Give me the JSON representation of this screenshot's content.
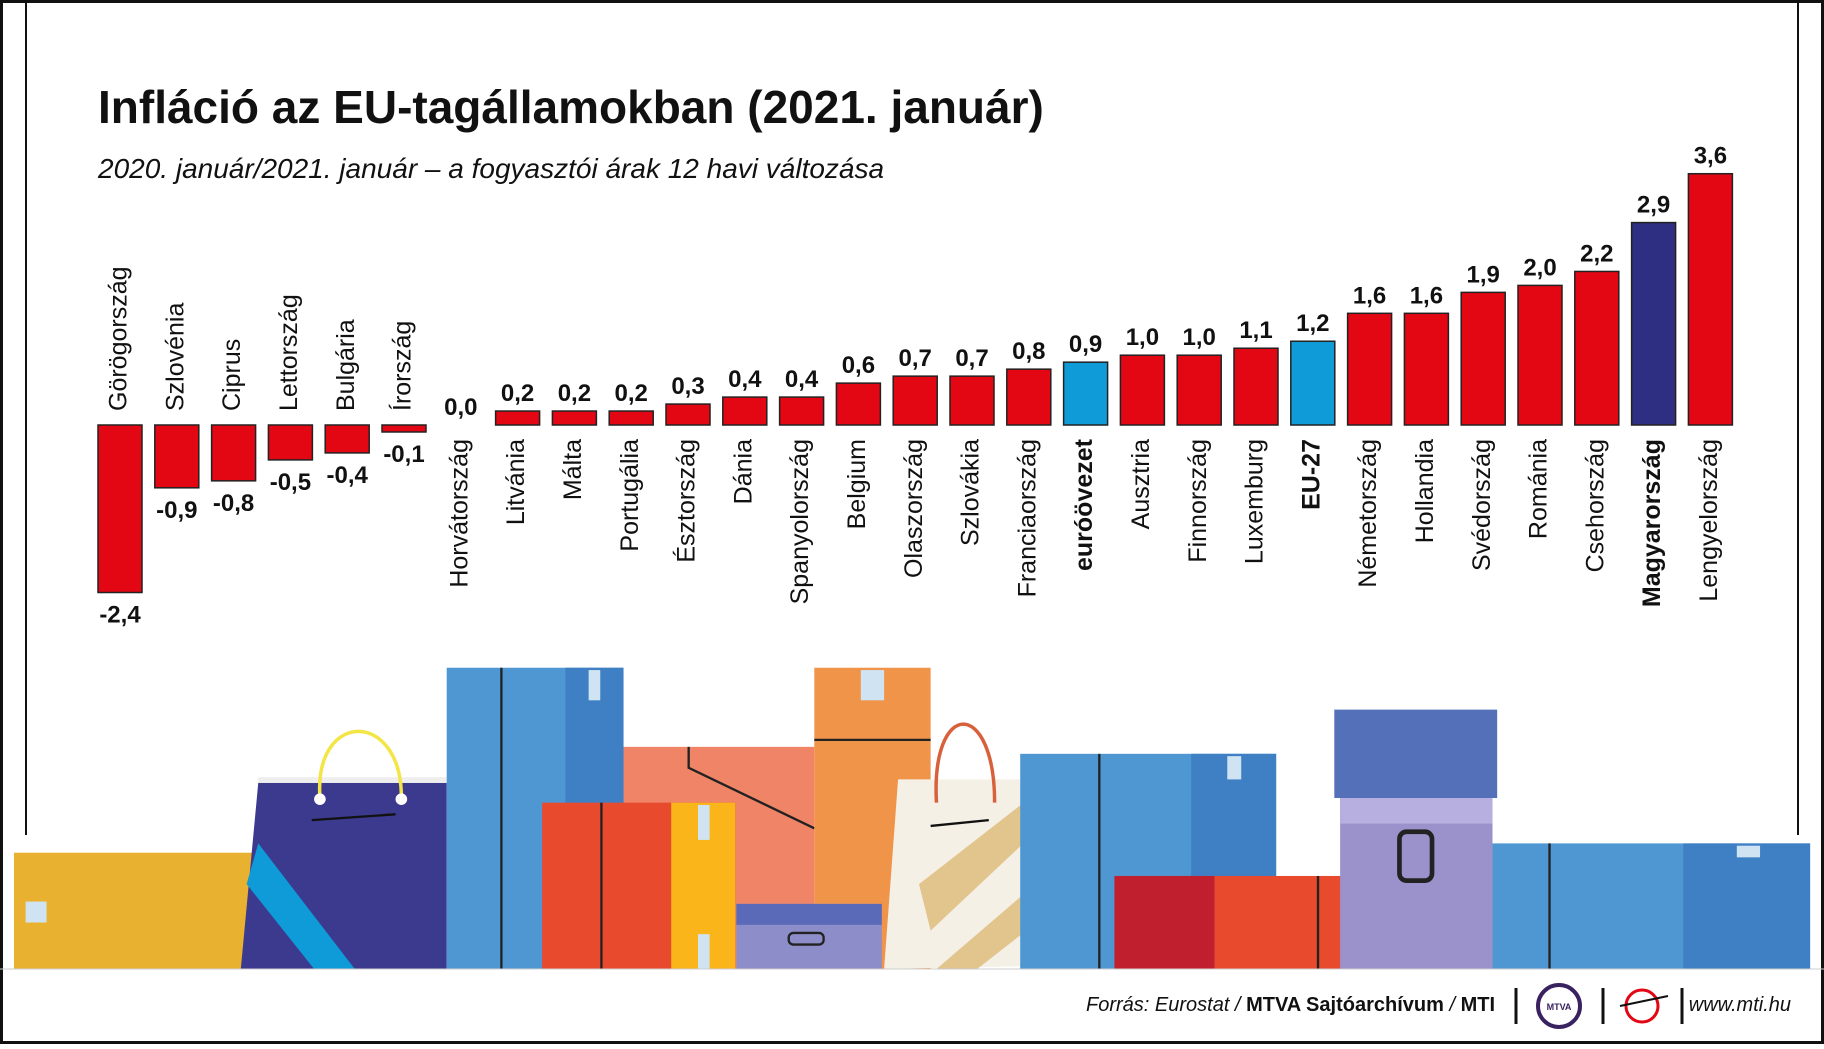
{
  "chart_data": {
    "type": "bar",
    "title": "Infláció az EU-tagállamokban (2021. január)",
    "subtitle": "2020. január/2021. január – a fogyasztói árak 12 havi változása",
    "categories": [
      "Görögország",
      "Szlovénia",
      "Ciprus",
      "Lettország",
      "Bulgária",
      "Írország",
      "Horvátország",
      "Litvánia",
      "Málta",
      "Portugália",
      "Észtország",
      "Dánia",
      "Spanyolország",
      "Belgium",
      "Olaszország",
      "Szlovákia",
      "Franciaország",
      "euróövezet",
      "Ausztria",
      "Finnország",
      "Luxemburg",
      "EU-27",
      "Németország",
      "Hollandia",
      "Svédország",
      "Románia",
      "Csehország",
      "Magyarország",
      "Lengyelország"
    ],
    "values": [
      -2.4,
      -0.9,
      -0.8,
      -0.5,
      -0.4,
      -0.1,
      0.0,
      0.2,
      0.2,
      0.2,
      0.3,
      0.4,
      0.4,
      0.6,
      0.7,
      0.7,
      0.8,
      0.9,
      1.0,
      1.0,
      1.1,
      1.2,
      1.6,
      1.6,
      1.9,
      2.0,
      2.2,
      2.9,
      3.6
    ],
    "value_labels": [
      "-2,4",
      "-0,9",
      "-0,8",
      "-0,5",
      "-0,4",
      "-0,1",
      "0,0",
      "0,2",
      "0,2",
      "0,2",
      "0,3",
      "0,4",
      "0,4",
      "0,6",
      "0,7",
      "0,7",
      "0,8",
      "0,9",
      "1,0",
      "1,0",
      "1,1",
      "1,2",
      "1,6",
      "1,6",
      "1,9",
      "2,0",
      "2,2",
      "2,9",
      "3,6"
    ],
    "color": "#e30613",
    "colors": [
      "#e30613",
      "#e30613",
      "#e30613",
      "#e30613",
      "#e30613",
      "#e30613",
      "#e30613",
      "#e30613",
      "#e30613",
      "#e30613",
      "#e30613",
      "#e30613",
      "#e30613",
      "#e30613",
      "#e30613",
      "#e30613",
      "#e30613",
      "#0f9ad8",
      "#e30613",
      "#e30613",
      "#e30613",
      "#0f9ad8",
      "#e30613",
      "#e30613",
      "#e30613",
      "#e30613",
      "#e30613",
      "#2e2f82",
      "#e30613"
    ]
  },
  "footer": {
    "source_prefix": "Forrás: Eurostat /",
    "archive": "MTVA Sajtóarchívum",
    "separator": "/",
    "agency": "MTI",
    "logo": "MTVA",
    "url": "www.mti.hu"
  }
}
